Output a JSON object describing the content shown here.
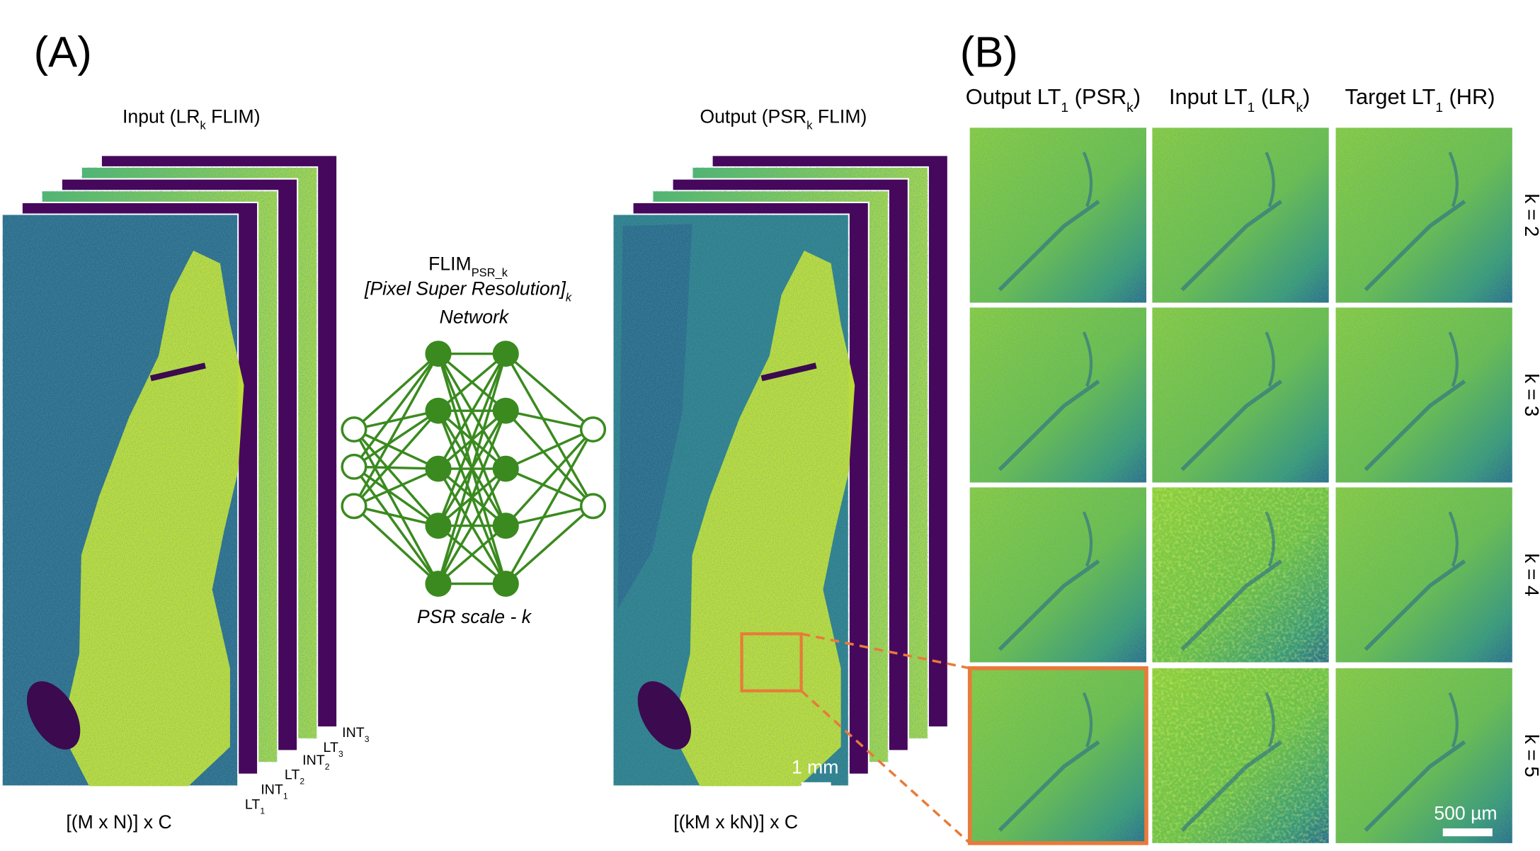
{
  "panel_a": {
    "label": "(A)",
    "input_title": [
      "Input (LR",
      "k",
      " FLIM)"
    ],
    "output_title": [
      "Output (PSR",
      "k",
      " FLIM)"
    ],
    "network_name": [
      "FLIM",
      "PSR_k"
    ],
    "network_desc": [
      "[Pixel Super Resolution]",
      "k"
    ],
    "network_word": "Network",
    "network_scale": "PSR scale - k",
    "channels": [
      [
        "LT",
        "1"
      ],
      [
        "INT",
        "1"
      ],
      [
        "LT",
        "2"
      ],
      [
        "INT",
        "2"
      ],
      [
        "LT",
        "3"
      ],
      [
        "INT",
        "3"
      ]
    ],
    "input_dims": "[(M x N)] x C",
    "output_dims": "[(kM x kN)] x C",
    "scale_bar": "1 mm"
  },
  "panel_b": {
    "label": "(B)",
    "columns": [
      [
        "Output LT",
        "1",
        " (PSR",
        "k",
        ")"
      ],
      [
        "Input LT",
        "1",
        " (LR",
        "k",
        ")"
      ],
      [
        "Target LT",
        "1",
        " (HR)"
      ]
    ],
    "rows": [
      "k = 2",
      "k = 3",
      "k = 4",
      "k = 5"
    ],
    "scale_bar": "500 µm"
  }
}
